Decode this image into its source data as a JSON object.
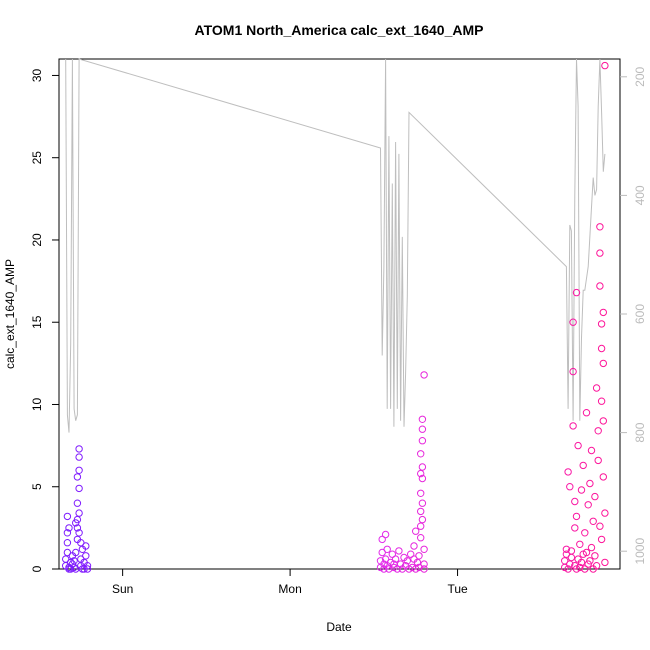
{
  "chart_data": {
    "type": "scatter",
    "title": "ATOM1 North_America calc_ext_1640_AMP",
    "xlabel": "Date",
    "ylabel": "calc_ext_1640_AMP",
    "xlim": [
      -0.38,
      2.97
    ],
    "ylim": [
      0,
      31
    ],
    "y2lim": [
      1030,
      170
    ],
    "x_ticks": [
      {
        "v": 0,
        "label": "Sun"
      },
      {
        "v": 1,
        "label": "Mon"
      },
      {
        "v": 2,
        "label": "Tue"
      }
    ],
    "y_ticks": [
      0,
      5,
      10,
      15,
      20,
      25,
      30
    ],
    "y2_ticks": [
      200,
      400,
      600,
      800,
      1000
    ],
    "grid": false,
    "colors": {
      "points_start": "#7a1cff",
      "points_mid": "#e02cf0",
      "points_end": "#ff1493",
      "line": "#bebebe",
      "axis": "#000000",
      "axis_right": "#bbbbbb"
    },
    "series": [
      {
        "type": "points",
        "points": [
          [
            -0.34,
            0.2
          ],
          [
            -0.34,
            0.6
          ],
          [
            -0.33,
            1.0
          ],
          [
            -0.33,
            1.6
          ],
          [
            -0.33,
            2.2
          ],
          [
            -0.32,
            2.5
          ],
          [
            -0.33,
            3.2
          ],
          [
            -0.32,
            0.1
          ],
          [
            -0.31,
            0.4
          ],
          [
            -0.31,
            0.0
          ],
          [
            -0.3,
            0.8
          ],
          [
            -0.3,
            0.3
          ],
          [
            -0.29,
            0.1
          ],
          [
            -0.29,
            0.5
          ],
          [
            -0.28,
            0.0
          ],
          [
            -0.28,
            1.0
          ],
          [
            -0.27,
            1.8
          ],
          [
            -0.27,
            2.5
          ],
          [
            -0.27,
            3.0
          ],
          [
            -0.26,
            3.4
          ],
          [
            -0.27,
            4.0
          ],
          [
            -0.26,
            4.9
          ],
          [
            -0.27,
            5.6
          ],
          [
            -0.26,
            6.0
          ],
          [
            -0.26,
            6.8
          ],
          [
            -0.26,
            7.3
          ],
          [
            -0.25,
            0.2
          ],
          [
            -0.25,
            0.6
          ],
          [
            -0.24,
            0.0
          ],
          [
            -0.24,
            1.2
          ],
          [
            -0.23,
            0.4
          ],
          [
            -0.23,
            0.0
          ],
          [
            -0.22,
            0.8
          ],
          [
            -0.22,
            1.4
          ],
          [
            -0.21,
            0.2
          ],
          [
            -0.21,
            0.0
          ],
          [
            -0.28,
            2.8
          ],
          [
            -0.26,
            2.2
          ],
          [
            -0.25,
            1.6
          ],
          [
            -0.32,
            0.0
          ],
          [
            1.54,
            0.1
          ],
          [
            1.54,
            0.5
          ],
          [
            1.55,
            1.0
          ],
          [
            1.55,
            1.8
          ],
          [
            1.56,
            0.3
          ],
          [
            1.56,
            0.0
          ],
          [
            1.57,
            2.1
          ],
          [
            1.57,
            0.6
          ],
          [
            1.58,
            0.2
          ],
          [
            1.58,
            1.2
          ],
          [
            1.59,
            0.0
          ],
          [
            1.6,
            0.4
          ],
          [
            1.61,
            0.9
          ],
          [
            1.62,
            0.1
          ],
          [
            1.63,
            0.6
          ],
          [
            1.64,
            0.0
          ],
          [
            1.65,
            1.1
          ],
          [
            1.66,
            0.3
          ],
          [
            1.67,
            0.0
          ],
          [
            1.68,
            0.7
          ],
          [
            1.69,
            0.2
          ],
          [
            1.7,
            0.5
          ],
          [
            1.71,
            0.0
          ],
          [
            1.72,
            0.9
          ],
          [
            1.73,
            0.1
          ],
          [
            1.74,
            0.6
          ],
          [
            1.74,
            1.4
          ],
          [
            1.75,
            0.0
          ],
          [
            1.75,
            2.3
          ],
          [
            1.76,
            0.4
          ],
          [
            1.77,
            0.1
          ],
          [
            1.77,
            0.8
          ],
          [
            1.78,
            1.9
          ],
          [
            1.78,
            2.6
          ],
          [
            1.78,
            3.5
          ],
          [
            1.78,
            4.6
          ],
          [
            1.79,
            5.5
          ],
          [
            1.79,
            6.2
          ],
          [
            1.78,
            7.0
          ],
          [
            1.79,
            7.8
          ],
          [
            1.79,
            8.5
          ],
          [
            1.79,
            9.1
          ],
          [
            1.8,
            11.8
          ],
          [
            1.8,
            0.3
          ],
          [
            1.8,
            1.2
          ],
          [
            1.79,
            4.0
          ],
          [
            1.78,
            5.8
          ],
          [
            1.79,
            3.0
          ],
          [
            1.8,
            0.0
          ],
          [
            1.62,
            0.3
          ],
          [
            2.64,
            0.1
          ],
          [
            2.64,
            0.5
          ],
          [
            2.65,
            0.9
          ],
          [
            2.65,
            1.2
          ],
          [
            2.66,
            5.9
          ],
          [
            2.66,
            0.0
          ],
          [
            2.67,
            5.0
          ],
          [
            2.67,
            0.3
          ],
          [
            2.68,
            0.7
          ],
          [
            2.68,
            1.1
          ],
          [
            2.69,
            8.7
          ],
          [
            2.69,
            12.0
          ],
          [
            2.69,
            15.0
          ],
          [
            2.7,
            0.2
          ],
          [
            2.7,
            2.5
          ],
          [
            2.7,
            4.1
          ],
          [
            2.71,
            16.8
          ],
          [
            2.71,
            0.0
          ],
          [
            2.71,
            3.2
          ],
          [
            2.72,
            0.6
          ],
          [
            2.72,
            7.5
          ],
          [
            2.73,
            0.1
          ],
          [
            2.73,
            1.5
          ],
          [
            2.74,
            4.8
          ],
          [
            2.74,
            0.4
          ],
          [
            2.75,
            0.9
          ],
          [
            2.75,
            6.3
          ],
          [
            2.76,
            0.0
          ],
          [
            2.76,
            2.2
          ],
          [
            2.77,
            1.0
          ],
          [
            2.77,
            9.5
          ],
          [
            2.78,
            0.3
          ],
          [
            2.78,
            3.9
          ],
          [
            2.79,
            0.5
          ],
          [
            2.79,
            5.2
          ],
          [
            2.8,
            1.3
          ],
          [
            2.8,
            7.2
          ],
          [
            2.81,
            0.0
          ],
          [
            2.81,
            2.9
          ],
          [
            2.82,
            0.8
          ],
          [
            2.82,
            4.4
          ],
          [
            2.83,
            11.0
          ],
          [
            2.83,
            0.2
          ],
          [
            2.84,
            6.6
          ],
          [
            2.84,
            8.4
          ],
          [
            2.85,
            17.2
          ],
          [
            2.85,
            19.2
          ],
          [
            2.85,
            20.8
          ],
          [
            2.86,
            10.2
          ],
          [
            2.86,
            13.4
          ],
          [
            2.86,
            14.9
          ],
          [
            2.87,
            15.6
          ],
          [
            2.87,
            12.5
          ],
          [
            2.87,
            9.0
          ],
          [
            2.87,
            5.6
          ],
          [
            2.88,
            30.6
          ],
          [
            2.88,
            3.4
          ],
          [
            2.88,
            0.4
          ],
          [
            2.86,
            1.8
          ],
          [
            2.85,
            2.6
          ]
        ]
      },
      {
        "type": "line",
        "points": [
          [
            -0.34,
            170
          ],
          [
            -0.33,
            770
          ],
          [
            -0.32,
            800
          ],
          [
            -0.31,
            650
          ],
          [
            -0.3,
            170
          ],
          [
            -0.29,
            760
          ],
          [
            -0.28,
            780
          ],
          [
            -0.27,
            770
          ],
          [
            -0.26,
            170
          ],
          [
            1.54,
            320
          ],
          [
            1.55,
            670
          ],
          [
            1.56,
            520
          ],
          [
            1.57,
            170
          ],
          [
            1.58,
            760
          ],
          [
            1.59,
            300
          ],
          [
            1.6,
            760
          ],
          [
            1.61,
            380
          ],
          [
            1.62,
            790
          ],
          [
            1.63,
            310
          ],
          [
            1.64,
            760
          ],
          [
            1.65,
            330
          ],
          [
            1.66,
            780
          ],
          [
            1.67,
            470
          ],
          [
            1.68,
            790
          ],
          [
            1.69,
            700
          ],
          [
            1.7,
            570
          ],
          [
            1.71,
            260
          ],
          [
            2.65,
            520
          ],
          [
            2.66,
            760
          ],
          [
            2.67,
            450
          ],
          [
            2.68,
            460
          ],
          [
            2.69,
            780
          ],
          [
            2.7,
            400
          ],
          [
            2.71,
            170
          ],
          [
            2.72,
            250
          ],
          [
            2.73,
            780
          ],
          [
            2.74,
            640
          ],
          [
            2.75,
            560
          ],
          [
            2.76,
            560
          ],
          [
            2.78,
            520
          ],
          [
            2.8,
            420
          ],
          [
            2.81,
            370
          ],
          [
            2.82,
            400
          ],
          [
            2.83,
            390
          ],
          [
            2.84,
            250
          ],
          [
            2.85,
            170
          ],
          [
            2.86,
            260
          ],
          [
            2.87,
            360
          ],
          [
            2.88,
            330
          ]
        ]
      }
    ]
  }
}
